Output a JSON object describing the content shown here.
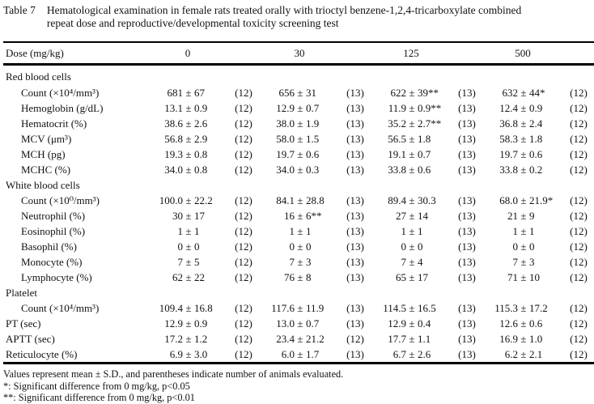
{
  "title": {
    "label": "Table 7",
    "line1": "Hematological examination in female rats treated orally with trioctyl benzene-1,2,4-tricarboxylate combined",
    "line2": "repeat dose and reproductive/developmental toxicity screening test"
  },
  "table": {
    "pm_sign": "±",
    "header": {
      "label": "Dose (mg/kg)",
      "doses": [
        "0",
        "30",
        "125",
        "500"
      ]
    },
    "rows": [
      {
        "type": "section",
        "label": "Red blood cells"
      },
      {
        "type": "data",
        "indent": true,
        "label": "Count (×10⁴/mm³)",
        "cells": [
          [
            "681",
            "67",
            "(12)"
          ],
          [
            "656",
            "31",
            "(13)"
          ],
          [
            "622",
            "39**",
            "(13)"
          ],
          [
            "632",
            "44*",
            "(12)"
          ]
        ]
      },
      {
        "type": "data",
        "indent": true,
        "label": "Hemoglobin (g/dL)",
        "cells": [
          [
            "13.1",
            "0.9",
            "(12)"
          ],
          [
            "12.9",
            "0.7",
            "(13)"
          ],
          [
            "11.9",
            "0.9**",
            "(13)"
          ],
          [
            "12.4",
            "0.9",
            "(12)"
          ]
        ]
      },
      {
        "type": "data",
        "indent": true,
        "label": "Hematocrit (%)",
        "cells": [
          [
            "38.6",
            "2.6",
            "(12)"
          ],
          [
            "38.0",
            "1.9",
            "(13)"
          ],
          [
            "35.2",
            "2.7**",
            "(13)"
          ],
          [
            "36.8",
            "2.4",
            "(12)"
          ]
        ]
      },
      {
        "type": "data",
        "indent": true,
        "label": "MCV (μm³)",
        "cells": [
          [
            "56.8",
            "2.9",
            "(12)"
          ],
          [
            "58.0",
            "1.5",
            "(13)"
          ],
          [
            "56.5",
            "1.8",
            "(13)"
          ],
          [
            "58.3",
            "1.8",
            "(12)"
          ]
        ]
      },
      {
        "type": "data",
        "indent": true,
        "label": "MCH (pg)",
        "cells": [
          [
            "19.3",
            "0.8",
            "(12)"
          ],
          [
            "19.7",
            "0.6",
            "(13)"
          ],
          [
            "19.1",
            "0.7",
            "(13)"
          ],
          [
            "19.7",
            "0.6",
            "(12)"
          ]
        ]
      },
      {
        "type": "data",
        "indent": true,
        "label": "MCHC (%)",
        "cells": [
          [
            "34.0",
            "0.8",
            "(12)"
          ],
          [
            "34.0",
            "0.3",
            "(13)"
          ],
          [
            "33.8",
            "0.6",
            "(13)"
          ],
          [
            "33.8",
            "0.2",
            "(12)"
          ]
        ]
      },
      {
        "type": "section",
        "label": "White blood cells"
      },
      {
        "type": "data",
        "indent": true,
        "label": "Count (×10⁰/mm³)",
        "cells": [
          [
            "100.0",
            "22.2",
            "(12)"
          ],
          [
            "84.1",
            "28.8",
            "(13)"
          ],
          [
            "89.4",
            "30.3",
            "(13)"
          ],
          [
            "68.0",
            "21.9*",
            "(12)"
          ]
        ]
      },
      {
        "type": "data",
        "indent": true,
        "label": "Neutrophil (%)",
        "cells": [
          [
            "30",
            "17",
            "(12)"
          ],
          [
            "16",
            "6**",
            "(13)"
          ],
          [
            "27",
            "14",
            "(13)"
          ],
          [
            "21",
            "9",
            "(12)"
          ]
        ]
      },
      {
        "type": "data",
        "indent": true,
        "label": "Eosinophil (%)",
        "cells": [
          [
            "1",
            "1",
            "(12)"
          ],
          [
            "1",
            "1",
            "(13)"
          ],
          [
            "1",
            "1",
            "(13)"
          ],
          [
            "1",
            "1",
            "(12)"
          ]
        ]
      },
      {
        "type": "data",
        "indent": true,
        "label": "Basophil (%)",
        "cells": [
          [
            "0",
            "0",
            "(12)"
          ],
          [
            "0",
            "0",
            "(13)"
          ],
          [
            "0",
            "0",
            "(13)"
          ],
          [
            "0",
            "0",
            "(12)"
          ]
        ]
      },
      {
        "type": "data",
        "indent": true,
        "label": "Monocyte (%)",
        "cells": [
          [
            "7",
            "5",
            "(12)"
          ],
          [
            "7",
            "3",
            "(13)"
          ],
          [
            "7",
            "4",
            "(13)"
          ],
          [
            "7",
            "3",
            "(12)"
          ]
        ]
      },
      {
        "type": "data",
        "indent": true,
        "label": "Lymphocyte (%)",
        "cells": [
          [
            "62",
            "22",
            "(12)"
          ],
          [
            "76",
            "8",
            "(13)"
          ],
          [
            "65",
            "17",
            "(13)"
          ],
          [
            "71",
            "10",
            "(12)"
          ]
        ]
      },
      {
        "type": "section",
        "label": "Platelet"
      },
      {
        "type": "data",
        "indent": true,
        "label": "Count (×10⁴/mm³)",
        "cells": [
          [
            "109.4",
            "16.8",
            "(12)"
          ],
          [
            "117.6",
            "11.9",
            "(13)"
          ],
          [
            "114.5",
            "16.5",
            "(13)"
          ],
          [
            "115.3",
            "17.2",
            "(12)"
          ]
        ]
      },
      {
        "type": "data",
        "indent": false,
        "label": "PT (sec)",
        "cells": [
          [
            "12.9",
            "0.9",
            "(12)"
          ],
          [
            "13.0",
            "0.7",
            "(13)"
          ],
          [
            "12.9",
            "0.4",
            "(13)"
          ],
          [
            "12.6",
            "0.6",
            "(12)"
          ]
        ]
      },
      {
        "type": "data",
        "indent": false,
        "label": "APTT (sec)",
        "cells": [
          [
            "17.2",
            "1.2",
            "(12)"
          ],
          [
            "23.4",
            "21.2",
            "(12)"
          ],
          [
            "17.7",
            "1.1",
            "(13)"
          ],
          [
            "16.9",
            "1.0",
            "(12)"
          ]
        ]
      },
      {
        "type": "data",
        "indent": false,
        "label": "Reticulocyte (%)",
        "cells": [
          [
            "6.9",
            "3.0",
            "(12)"
          ],
          [
            "6.0",
            "1.7",
            "(13)"
          ],
          [
            "6.7",
            "2.6",
            "(13)"
          ],
          [
            "6.2",
            "2.1",
            "(12)"
          ]
        ]
      }
    ]
  },
  "footnotes": [
    "Values represent mean ± S.D., and parentheses indicate number of animals evaluated.",
    "*: Significant difference from 0 mg/kg, p<0.05",
    "**: Significant difference from 0 mg/kg, p<0.01"
  ]
}
